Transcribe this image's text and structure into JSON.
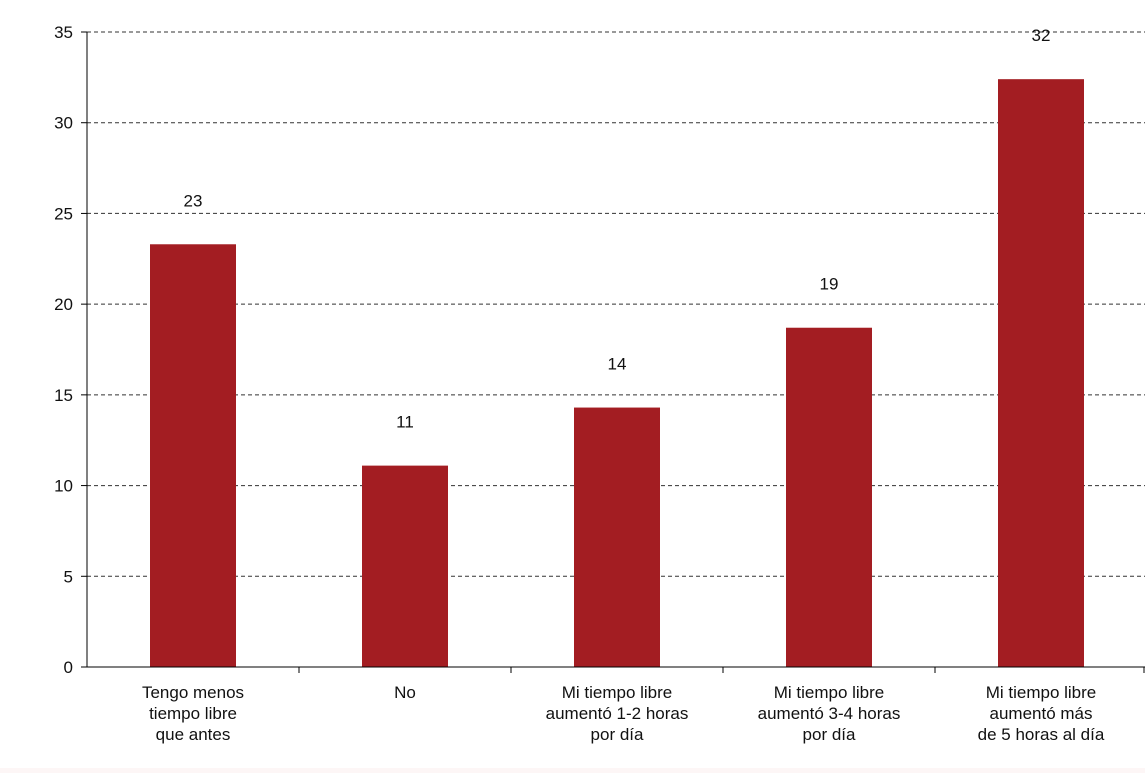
{
  "chart_data": {
    "type": "bar",
    "title": "",
    "xlabel": "",
    "ylabel": "",
    "ylim": [
      0,
      35
    ],
    "yticks": [
      0,
      5,
      10,
      15,
      20,
      25,
      30,
      35
    ],
    "grid": true,
    "legend": "none",
    "categories": [
      [
        "Tengo menos",
        "tiempo libre",
        "que antes"
      ],
      [
        "No"
      ],
      [
        "Mi tiempo libre",
        "aumentó 1-2 horas",
        "por día"
      ],
      [
        "Mi tiempo libre",
        "aumentó 3-4 horas",
        "por día"
      ],
      [
        "Mi tiempo libre",
        "aumentó más",
        "de 5 horas al día"
      ]
    ],
    "values": [
      23.3,
      11.1,
      14.3,
      18.7,
      32.4
    ],
    "data_labels": [
      "23",
      "11",
      "14",
      "19",
      "32"
    ],
    "bar_color": "#a31d22"
  }
}
